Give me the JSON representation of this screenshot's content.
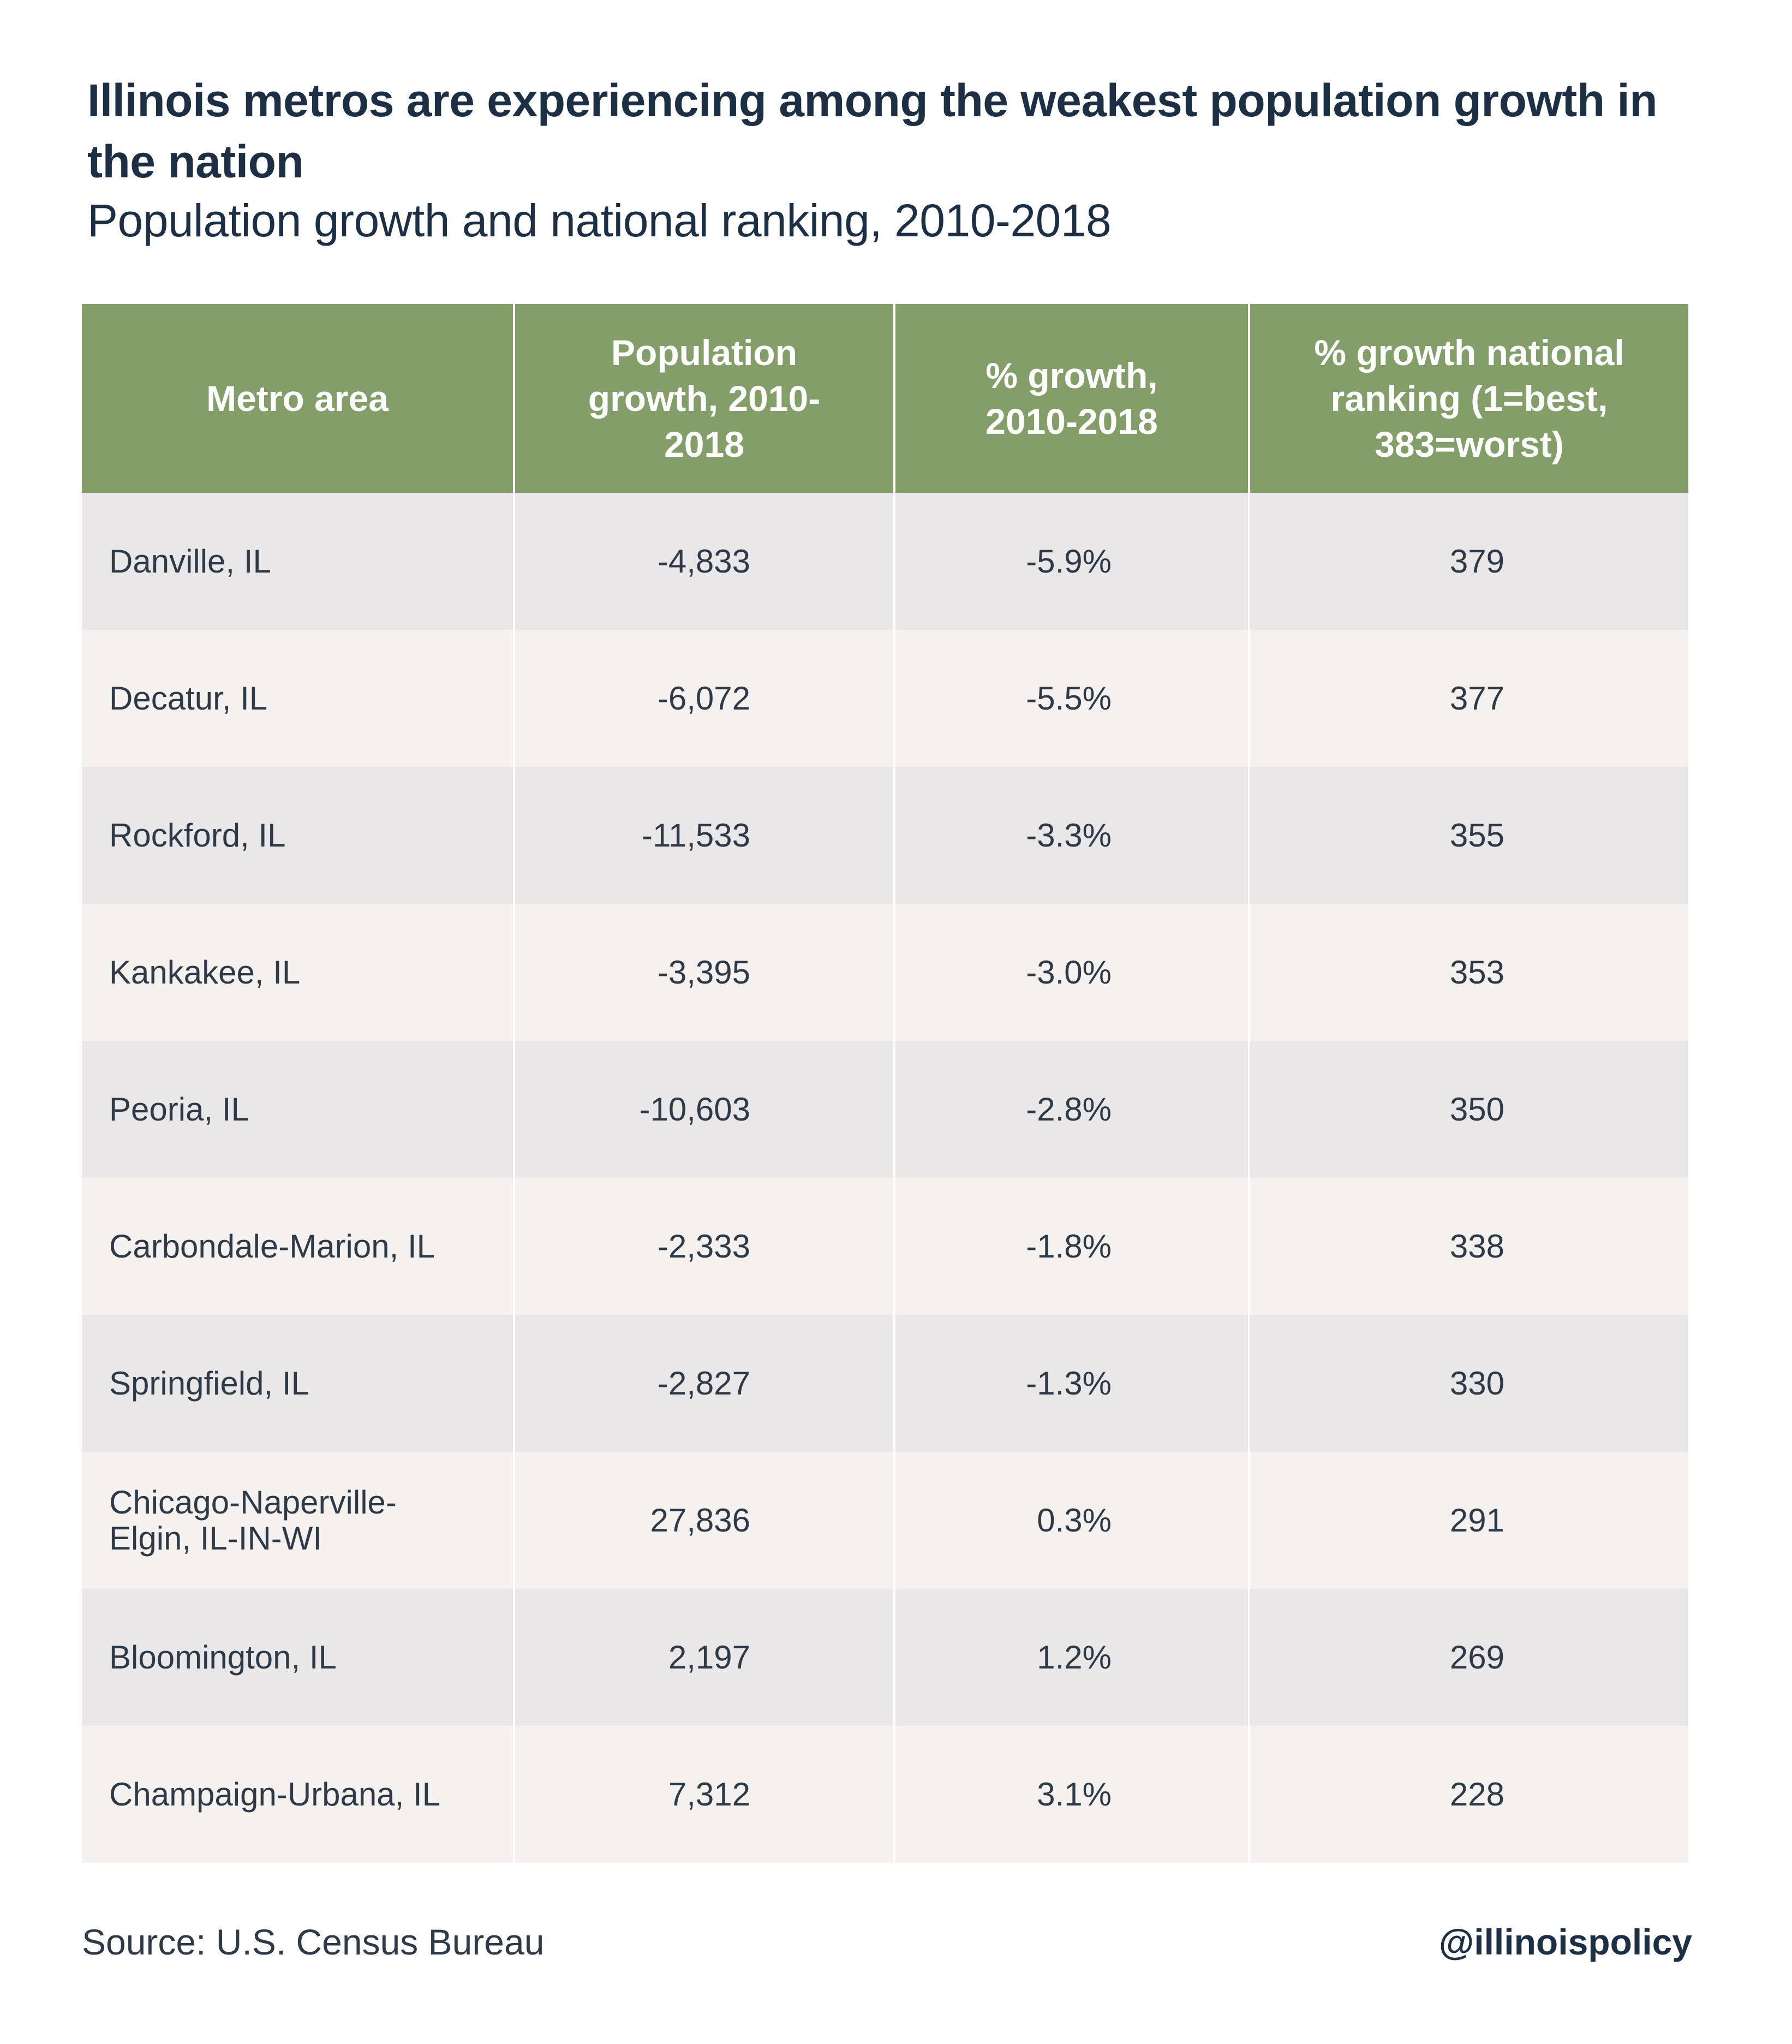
{
  "title": "Illinois metros are experiencing among the weakest population growth in the nation",
  "subtitle": "Population growth and national ranking, 2010-2018",
  "colors": {
    "header_bg": "#849e6a",
    "header_text": "#ffffff",
    "row_odd": "#e9e7e8",
    "row_even": "#f4f1ef",
    "title_text": "#1c2f45"
  },
  "chart_data": {
    "type": "table",
    "title": "Illinois metros are experiencing among the weakest population growth in the nation",
    "subtitle": "Population growth and national ranking, 2010-2018",
    "columns": [
      "Metro area",
      "Population growth, 2010-2018",
      "% growth, 2010-2018",
      "% growth national ranking (1=best, 383=worst)"
    ],
    "rows": [
      [
        "Danville, IL",
        "-4,833",
        "-5.9%",
        "379"
      ],
      [
        "Decatur, IL",
        "-6,072",
        "-5.5%",
        "377"
      ],
      [
        "Rockford, IL",
        "-11,533",
        "-3.3%",
        "355"
      ],
      [
        "Kankakee, IL",
        "-3,395",
        "-3.0%",
        "353"
      ],
      [
        "Peoria, IL",
        "-10,603",
        "-2.8%",
        "350"
      ],
      [
        "Carbondale-Marion, IL",
        "-2,333",
        "-1.8%",
        "338"
      ],
      [
        "Springfield, IL",
        "-2,827",
        "-1.3%",
        "330"
      ],
      [
        "Chicago-Naperville-Elgin, IL-IN-WI",
        "27,836",
        "0.3%",
        "291"
      ],
      [
        "Bloomington, IL",
        "2,197",
        "1.2%",
        "269"
      ],
      [
        "Champaign-Urbana, IL",
        "7,312",
        "3.1%",
        "228"
      ]
    ]
  },
  "footer": {
    "source": "Source: U.S. Census Bureau",
    "handle": "@illinoispolicy"
  }
}
